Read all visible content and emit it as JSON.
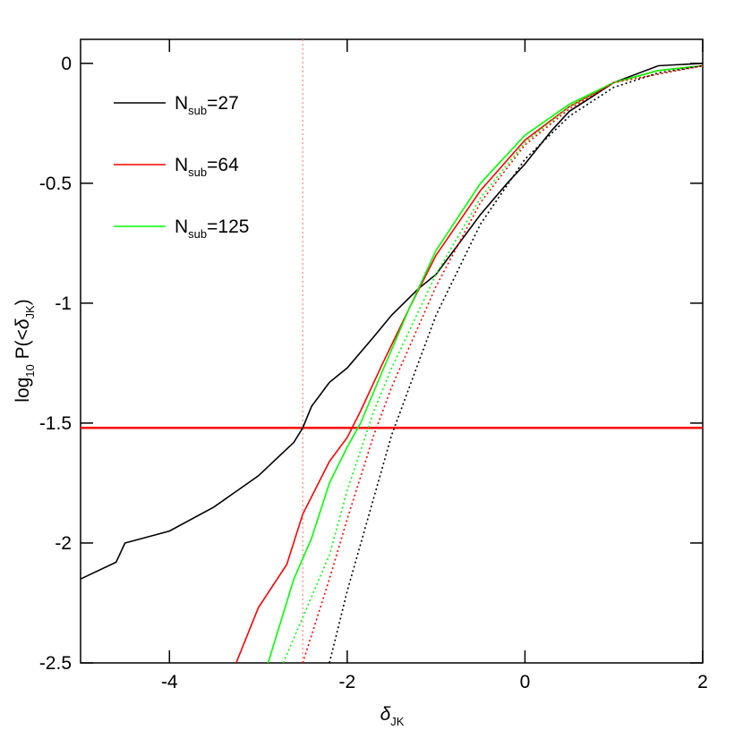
{
  "chart_data": {
    "type": "line",
    "xlabel": [
      {
        "t": "δ",
        "style": "italic"
      },
      {
        "t": "JK",
        "sub": true
      }
    ],
    "ylabel": [
      {
        "t": "log"
      },
      {
        "t": "10",
        "sub": true
      },
      {
        "t": " P(<"
      },
      {
        "t": "δ",
        "style": "italic"
      },
      {
        "t": "JK",
        "sub": true
      },
      {
        "t": ")"
      }
    ],
    "xlim": [
      -5,
      2
    ],
    "ylim": [
      -2.5,
      0.1
    ],
    "xticks": [
      -4,
      -2,
      0,
      2
    ],
    "yticks": [
      0,
      -0.5,
      -1,
      -1.5,
      -2,
      -2.5
    ],
    "series": [
      {
        "name": [
          {
            "t": "N"
          },
          {
            "t": "sub",
            "sub": true
          },
          {
            "t": "=27"
          }
        ],
        "color": "#000000",
        "dash": "solid",
        "x": [
          -5,
          -4.6,
          -4.5,
          -4,
          -3.5,
          -3,
          -2.6,
          -2.5,
          -2.4,
          -2.2,
          -2,
          -1.7,
          -1.5,
          -1.2,
          -1,
          -0.8,
          -0.5,
          -0.2,
          0,
          0.3,
          0.5,
          1,
          1.5,
          2
        ],
        "values": [
          -2.15,
          -2.08,
          -2,
          -1.95,
          -1.85,
          -1.72,
          -1.58,
          -1.52,
          -1.43,
          -1.33,
          -1.27,
          -1.14,
          -1.05,
          -0.94,
          -0.88,
          -0.78,
          -0.63,
          -0.5,
          -0.42,
          -0.28,
          -0.2,
          -0.08,
          -0.01,
          0
        ]
      },
      {
        "name": [
          {
            "t": "N"
          },
          {
            "t": "sub",
            "sub": true
          },
          {
            "t": "=64"
          }
        ],
        "color": "#ff0000",
        "dash": "solid",
        "x": [
          -3.25,
          -3,
          -2.68,
          -2.5,
          -2.2,
          -2,
          -1.85,
          -1.6,
          -1.3,
          -1,
          -0.5,
          0,
          0.5,
          1,
          1.5,
          2
        ],
        "values": [
          -2.5,
          -2.27,
          -2.09,
          -1.88,
          -1.66,
          -1.56,
          -1.45,
          -1.25,
          -1.02,
          -0.8,
          -0.53,
          -0.32,
          -0.18,
          -0.08,
          -0.03,
          -0.01
        ]
      },
      {
        "name": [
          {
            "t": "N"
          },
          {
            "t": "sub",
            "sub": true
          },
          {
            "t": "=125"
          }
        ],
        "color": "#00ff00",
        "dash": "solid",
        "x": [
          -2.89,
          -2.6,
          -2.4,
          -2.2,
          -2,
          -1.85,
          -1.6,
          -1.3,
          -1,
          -0.5,
          0,
          0.5,
          1,
          1.5,
          2
        ],
        "values": [
          -2.5,
          -2.15,
          -1.98,
          -1.75,
          -1.6,
          -1.5,
          -1.28,
          -1.02,
          -0.78,
          -0.5,
          -0.3,
          -0.17,
          -0.08,
          -0.03,
          -0.01
        ]
      },
      {
        "color": "#00ff00",
        "dash": "dotted",
        "x": [
          -2.72,
          -2.2,
          -2,
          -1.7,
          -1.5,
          -1,
          -0.5,
          0,
          0.5,
          1,
          2
        ],
        "values": [
          -2.5,
          -2.05,
          -1.78,
          -1.45,
          -1.27,
          -0.88,
          -0.56,
          -0.33,
          -0.18,
          -0.08,
          -0.01
        ]
      },
      {
        "color": "#ff0000",
        "dash": "dotted",
        "x": [
          -2.5,
          -2.2,
          -2,
          -1.7,
          -1.5,
          -1,
          -0.5,
          0,
          0.5,
          1,
          2
        ],
        "values": [
          -2.5,
          -2.15,
          -1.9,
          -1.55,
          -1.35,
          -0.93,
          -0.58,
          -0.34,
          -0.19,
          -0.08,
          -0.01
        ]
      },
      {
        "color": "#000000",
        "dash": "dotted",
        "x": [
          -2.2,
          -2,
          -1.5,
          -1,
          -0.5,
          0,
          0.5,
          1,
          1.5,
          2
        ],
        "values": [
          -2.5,
          -2.2,
          -1.55,
          -1.05,
          -0.67,
          -0.4,
          -0.22,
          -0.1,
          -0.04,
          -0.01
        ]
      }
    ],
    "hlines": [
      {
        "y": -1.52,
        "color": "#ff0000",
        "dash": "solid"
      }
    ],
    "vlines": [
      {
        "x": -2.5,
        "color": "#ff8080",
        "dash": "dotted"
      }
    ]
  }
}
